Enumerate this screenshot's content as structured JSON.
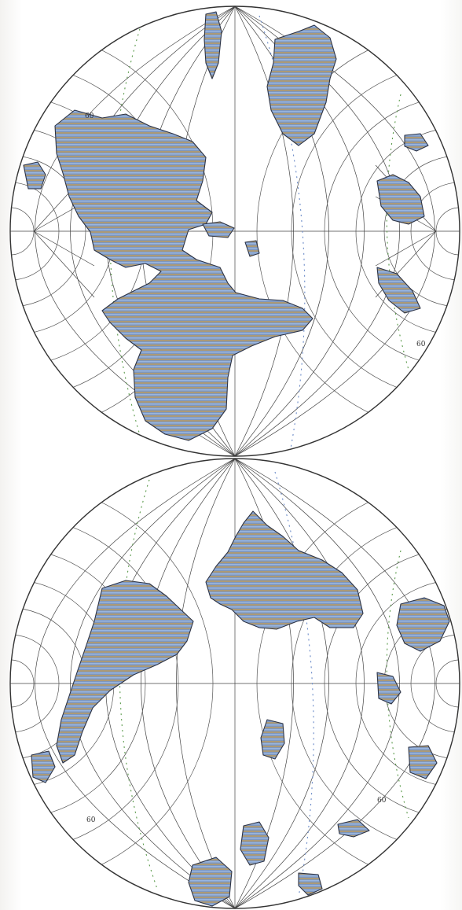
{
  "figure": {
    "kind": "double hemisphere world map",
    "colors": {
      "land_fill": "#7f97bd",
      "land_stripe_a": "#b39a6c",
      "land_stripe_b": "#8fb0dc",
      "land_outline": "#2c3346",
      "grid": "#444444",
      "track_green": "#5a9a4a",
      "track_blue": "#6a8ac8"
    }
  },
  "hemispheres": [
    {
      "name": "upper-hemisphere",
      "tick_labels": [
        "60",
        "60"
      ]
    },
    {
      "name": "lower-hemisphere",
      "tick_labels": [
        "60",
        "60"
      ]
    }
  ]
}
